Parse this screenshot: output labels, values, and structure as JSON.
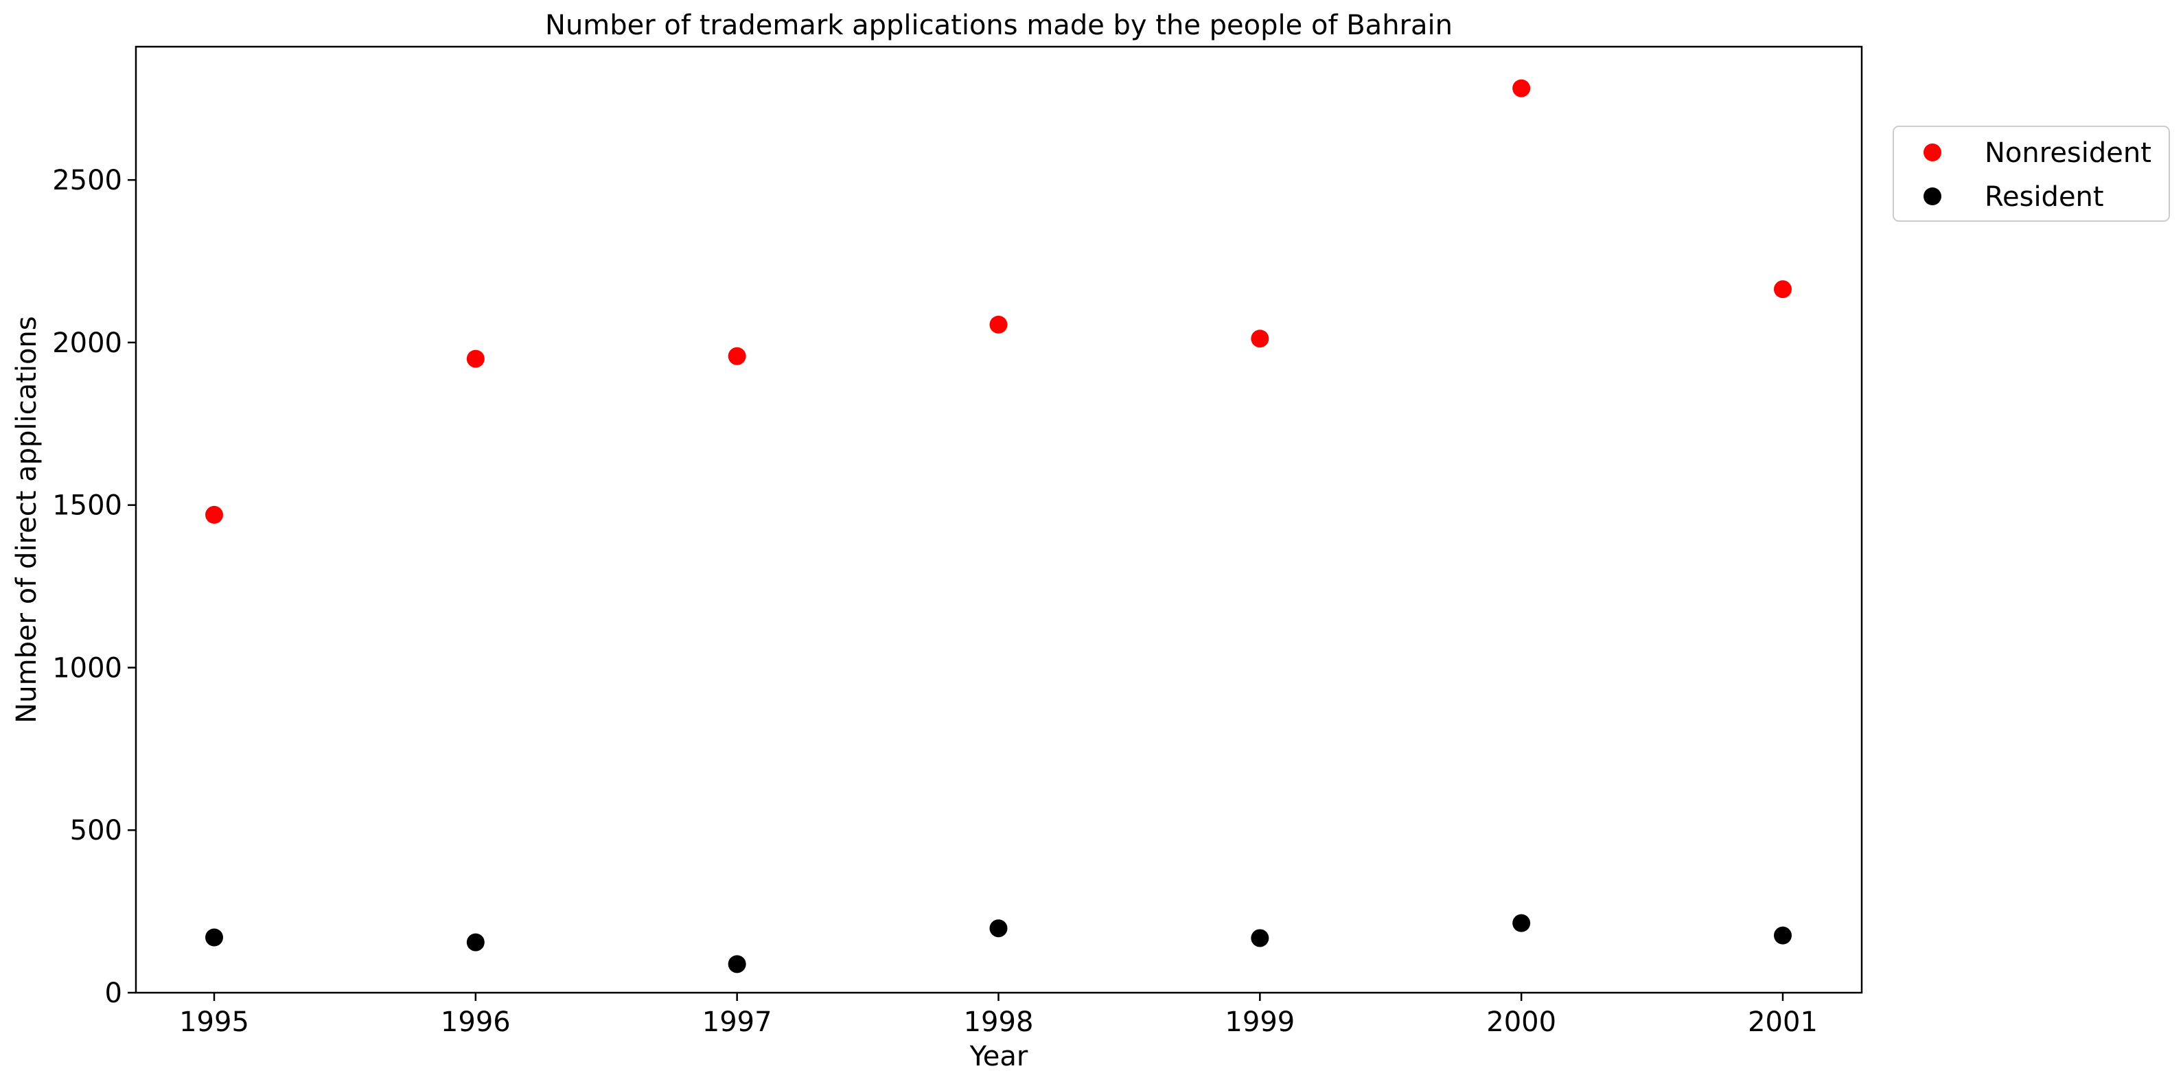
{
  "chart_data": {
    "type": "scatter",
    "title": "Number of trademark applications made by the people of Bahrain",
    "xlabel": "Year",
    "ylabel": "Number of direct applications",
    "x": [
      "1995",
      "1996",
      "1997",
      "1998",
      "1999",
      "2000",
      "2001"
    ],
    "x_ticks": [
      "1995",
      "1996",
      "1997",
      "1998",
      "1999",
      "2000",
      "2001"
    ],
    "y_ticks": [
      "0",
      "500",
      "1000",
      "1500",
      "2000",
      "2500"
    ],
    "ylim": [
      0,
      2910
    ],
    "grid": false,
    "legend_position": "right, outside top",
    "series": [
      {
        "name": "Nonresident",
        "color": "#ff0000",
        "values": [
          1470,
          1950,
          1958,
          2055,
          2012,
          2782,
          2164
        ]
      },
      {
        "name": "Resident",
        "color": "#000000",
        "values": [
          170,
          155,
          88,
          198,
          168,
          214,
          176
        ]
      }
    ]
  }
}
